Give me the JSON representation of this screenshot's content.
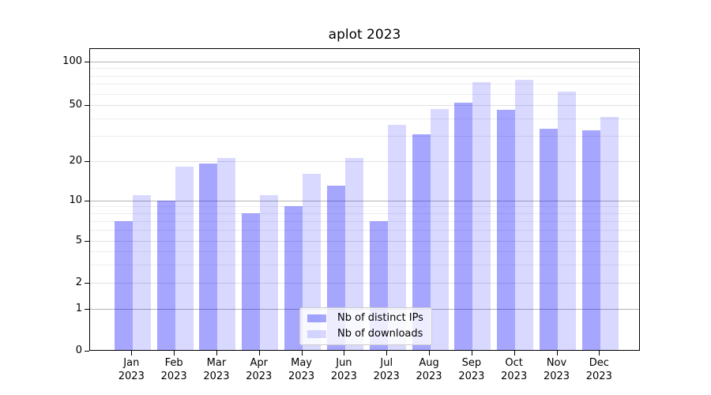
{
  "chart_data": {
    "type": "bar",
    "title": "aplot 2023",
    "categories": [
      "Jan",
      "Feb",
      "Mar",
      "Apr",
      "May",
      "Jun",
      "Jul",
      "Aug",
      "Sep",
      "Oct",
      "Nov",
      "Dec"
    ],
    "x_tick_year_line": "2023",
    "series": [
      {
        "name": "Nb of distinct IPs",
        "color": "rgba(0,0,255,0.35)",
        "values": [
          7,
          10,
          19,
          8,
          9,
          13,
          7,
          31,
          52,
          46,
          34,
          33
        ]
      },
      {
        "name": "Nb of downloads",
        "color": "rgba(0,0,255,0.15)",
        "values": [
          11,
          18,
          21,
          11,
          16,
          21,
          36,
          47,
          72,
          75,
          62,
          41
        ]
      }
    ],
    "xlabel": "",
    "ylabel": "",
    "yscale": "log-like with linear 0-1 segment",
    "ylim": [
      0,
      125
    ],
    "y_major_ticks": [
      100,
      50,
      20,
      10,
      5,
      2,
      1,
      0
    ],
    "y_dark_gridlines": [
      1,
      10,
      100
    ],
    "y_labeled_gridlines": [
      2,
      5,
      20,
      50
    ],
    "y_minor_gridlines": [
      3,
      4,
      6,
      7,
      8,
      9,
      30,
      40,
      60,
      70,
      80,
      90
    ],
    "grid": true,
    "legend": {
      "position": "lower center"
    }
  }
}
